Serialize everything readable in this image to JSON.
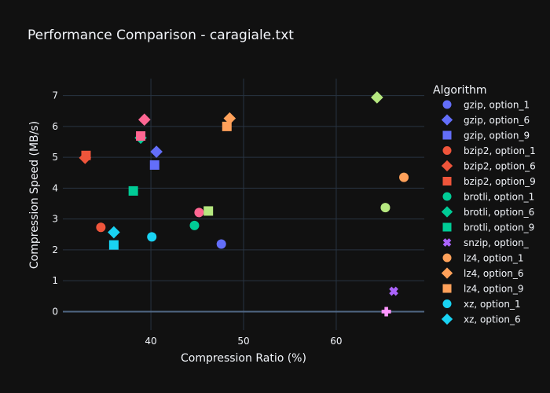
{
  "chart_data": {
    "type": "scatter",
    "title": "Performance Comparison - caragiale.txt",
    "xlabel": "Compression Ratio (%)",
    "ylabel": "Compression Speed (MB/s)",
    "xlim": [
      30.5,
      69.5
    ],
    "ylim": [
      -0.6,
      7.55
    ],
    "x_ticks": [
      40,
      50,
      60
    ],
    "y_ticks": [
      0,
      1,
      2,
      3,
      4,
      5,
      6,
      7
    ],
    "grid": true,
    "legend_title": "Algorithm",
    "legend_position": "right",
    "series": [
      {
        "name": "gzip, option_1",
        "symbol": "circle",
        "color": "#636efa",
        "x": 47.6,
        "y": 2.19
      },
      {
        "name": "gzip, option_6",
        "symbol": "diamond",
        "color": "#636efa",
        "x": 40.6,
        "y": 5.18
      },
      {
        "name": "gzip, option_9",
        "symbol": "square",
        "color": "#636efa",
        "x": 40.4,
        "y": 4.75
      },
      {
        "name": "bzip2, option_1",
        "symbol": "circle",
        "color": "#ef553b",
        "x": 34.6,
        "y": 2.73
      },
      {
        "name": "bzip2, option_6",
        "symbol": "diamond",
        "color": "#ef553b",
        "x": 32.9,
        "y": 4.98
      },
      {
        "name": "bzip2, option_9",
        "symbol": "square",
        "color": "#ef553b",
        "x": 33.0,
        "y": 5.06
      },
      {
        "name": "brotli, option_1",
        "symbol": "circle",
        "color": "#00cc96",
        "x": 44.7,
        "y": 2.79
      },
      {
        "name": "brotli, option_6",
        "symbol": "diamond",
        "color": "#00cc96",
        "x": 38.9,
        "y": 5.63
      },
      {
        "name": "brotli, option_9",
        "symbol": "square",
        "color": "#00cc96",
        "x": 38.1,
        "y": 3.91
      },
      {
        "name": "snzip, option_",
        "symbol": "x",
        "color": "#ab63fa",
        "x": 66.2,
        "y": 0.66
      },
      {
        "name": "lz4, option_1",
        "symbol": "circle",
        "color": "#ffa15a",
        "x": 67.3,
        "y": 4.35
      },
      {
        "name": "lz4, option_6",
        "symbol": "diamond",
        "color": "#ffa15a",
        "x": 48.5,
        "y": 6.26
      },
      {
        "name": "lz4, option_9",
        "symbol": "square",
        "color": "#ffa15a",
        "x": 48.2,
        "y": 6.0
      },
      {
        "name": "xz, option_1",
        "symbol": "circle",
        "color": "#19d3f3",
        "x": 40.1,
        "y": 2.42
      },
      {
        "name": "xz, option_6",
        "symbol": "diamond",
        "color": "#19d3f3",
        "x": 36.0,
        "y": 2.57
      },
      {
        "name": "xz, option_9",
        "symbol": "square",
        "color": "#19d3f3",
        "x": 36.0,
        "y": 2.16
      },
      {
        "name": "",
        "symbol": "circle",
        "color": "#ff6692",
        "x": 45.2,
        "y": 3.21
      },
      {
        "name": "",
        "symbol": "diamond",
        "color": "#ff6692",
        "x": 39.3,
        "y": 6.22
      },
      {
        "name": "",
        "symbol": "square",
        "color": "#ff6692",
        "x": 38.9,
        "y": 5.69
      },
      {
        "name": "",
        "symbol": "cross",
        "color": "#ff97ff",
        "x": 65.4,
        "y": 0.0
      },
      {
        "name": "",
        "symbol": "circle",
        "color": "#b6e880",
        "x": 65.3,
        "y": 3.37
      },
      {
        "name": "",
        "symbol": "diamond",
        "color": "#b6e880",
        "x": 64.4,
        "y": 6.94
      },
      {
        "name": "",
        "symbol": "square",
        "color": "#b6e880",
        "x": 46.2,
        "y": 3.26
      }
    ]
  }
}
